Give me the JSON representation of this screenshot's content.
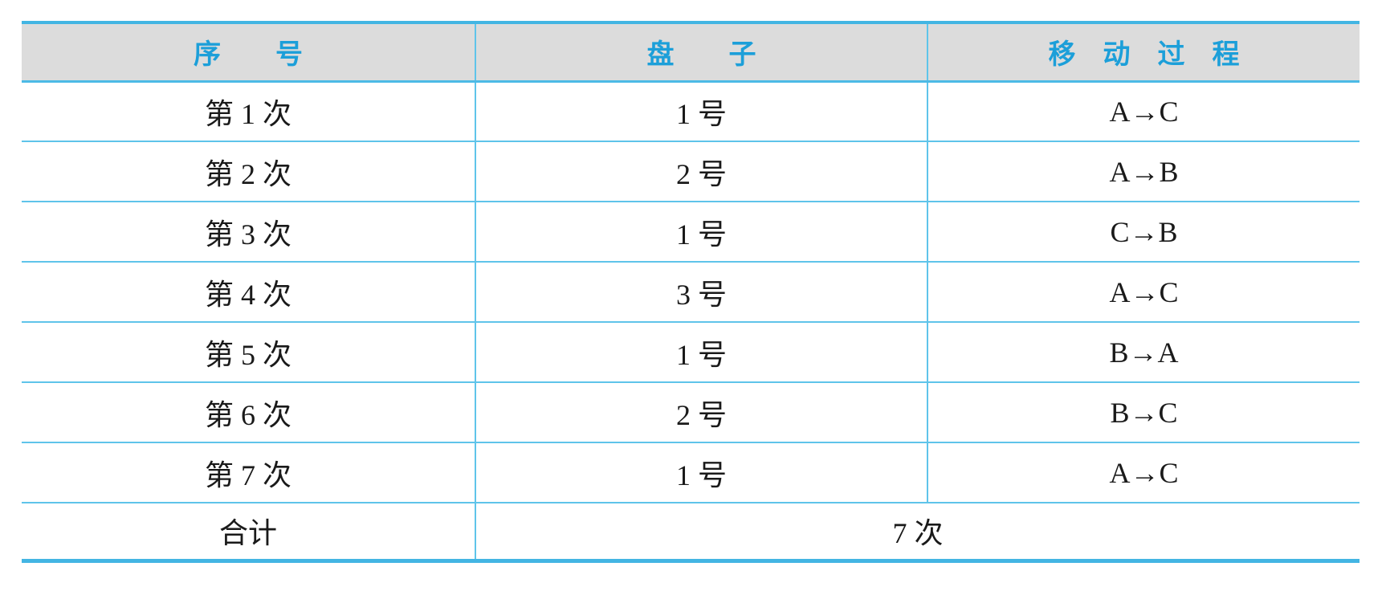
{
  "colors": {
    "accent-blue": "#1C9FD9",
    "header-bg": "#DCDCDC",
    "border-strong": "#43B5E3",
    "border-medium": "#4CBAE6",
    "border-light": "#5FC4EA",
    "text-color": "#1A1A1A",
    "page-bg": "#FFFFFF"
  },
  "table": {
    "headers": {
      "seq": "序　　号",
      "disk": "盘　　子",
      "move": "移　动　过　程"
    },
    "rows": [
      {
        "seq": "第 1 次",
        "disk": "1 号",
        "move": "A→C"
      },
      {
        "seq": "第 2 次",
        "disk": "2 号",
        "move": "A→B"
      },
      {
        "seq": "第 3 次",
        "disk": "1 号",
        "move": "C→B"
      },
      {
        "seq": "第 4 次",
        "disk": "3 号",
        "move": "A→C"
      },
      {
        "seq": "第 5 次",
        "disk": "1 号",
        "move": "B→A"
      },
      {
        "seq": "第 6 次",
        "disk": "2 号",
        "move": "B→C"
      },
      {
        "seq": "第 7 次",
        "disk": "1 号",
        "move": "A→C"
      }
    ],
    "footer": {
      "label": "合计",
      "value": "7 次"
    }
  }
}
